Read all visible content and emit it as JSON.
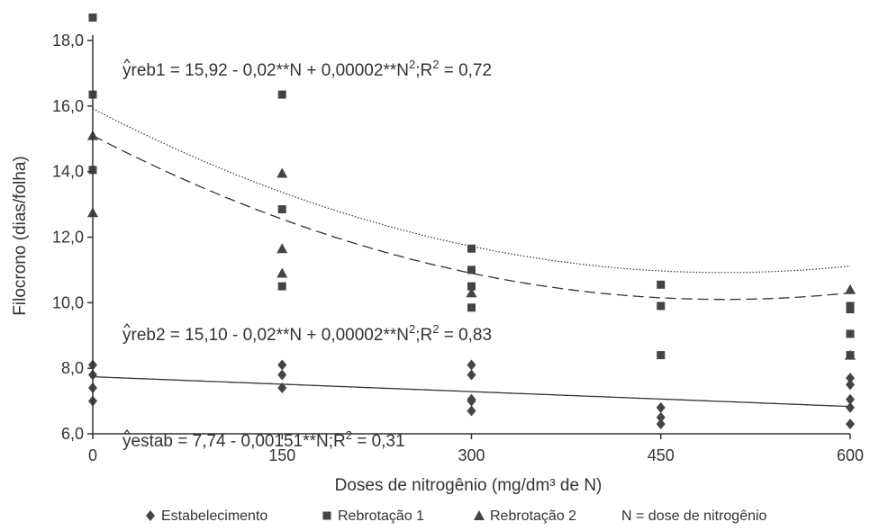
{
  "chart_data": {
    "type": "scatter",
    "xlabel": "Doses de nitrogênio (mg/dm³ de N)",
    "ylabel": "Filocrono (dias/folha)",
    "xlim": [
      0,
      600
    ],
    "ylim": [
      6,
      18
    ],
    "x_ticks": [
      "0",
      "150",
      "300",
      "450",
      "600"
    ],
    "y_ticks": [
      "6,0",
      "8,0",
      "10,0",
      "12,0",
      "14,0",
      "16,0",
      "18,0"
    ],
    "grid": false,
    "legend_position": "bottom",
    "series": [
      {
        "name": "Estabelecimento",
        "marker": "diamond",
        "points": [
          [
            0,
            8.1
          ],
          [
            0,
            7.8
          ],
          [
            0,
            7.4
          ],
          [
            0,
            7.0
          ],
          [
            150,
            8.1
          ],
          [
            150,
            7.8
          ],
          [
            150,
            7.4
          ],
          [
            300,
            8.1
          ],
          [
            300,
            7.8
          ],
          [
            300,
            7.05
          ],
          [
            300,
            7.0
          ],
          [
            300,
            6.7
          ],
          [
            450,
            6.8
          ],
          [
            450,
            6.5
          ],
          [
            450,
            6.3
          ],
          [
            600,
            7.7
          ],
          [
            600,
            7.5
          ],
          [
            600,
            7.05
          ],
          [
            600,
            6.8
          ],
          [
            600,
            6.3
          ]
        ]
      },
      {
        "name": "Rebrotação 1",
        "marker": "square",
        "points": [
          [
            0,
            18.7
          ],
          [
            0,
            16.35
          ],
          [
            0,
            14.05
          ],
          [
            150,
            16.35
          ],
          [
            150,
            12.85
          ],
          [
            150,
            10.5
          ],
          [
            300,
            11.65
          ],
          [
            300,
            11.0
          ],
          [
            300,
            10.5
          ],
          [
            300,
            9.85
          ],
          [
            450,
            10.55
          ],
          [
            450,
            9.9
          ],
          [
            450,
            8.4
          ],
          [
            600,
            9.9
          ],
          [
            600,
            9.8
          ],
          [
            600,
            9.05
          ],
          [
            600,
            8.4
          ]
        ]
      },
      {
        "name": "Rebrotação 2",
        "marker": "triangle",
        "points": [
          [
            0,
            15.1
          ],
          [
            0,
            12.75
          ],
          [
            150,
            13.95
          ],
          [
            150,
            11.65
          ],
          [
            150,
            10.9
          ],
          [
            300,
            10.3
          ],
          [
            600,
            10.4
          ],
          [
            600,
            8.4
          ]
        ]
      }
    ],
    "legend_extra": "N = dose de nitrogênio",
    "fits": [
      {
        "series": "Rebrotação 1",
        "coef": [
          15.92,
          -0.02,
          2e-05
        ],
        "style": "dotted",
        "equation": {
          "yhat": "y",
          "sub": "reb1",
          "text": " = 15,92 - 0,02**N + 0,00002**N",
          "sup": "2",
          "r2_label": ";R",
          "r2_sup": "2",
          "r2_value": " = 0,72"
        }
      },
      {
        "series": "Rebrotação 2",
        "coef": [
          15.1,
          -0.02,
          2e-05
        ],
        "style": "dashed",
        "equation": {
          "yhat": "y",
          "sub": "reb2",
          "text": " = 15,10 - 0,02**N + 0,00002**N",
          "sup": "2",
          "r2_label": ";R",
          "r2_sup": "2",
          "r2_value": " = 0,83"
        }
      },
      {
        "series": "Estabelecimento",
        "coef": [
          7.74,
          -0.00151,
          0
        ],
        "style": "solid",
        "equation": {
          "yhat": "y",
          "sub": "estab",
          "text": " = 7,74 - 0,00151**N",
          "sup": "",
          "r2_label": ";R",
          "r2_sup": "2",
          "r2_value": " = 0,31"
        }
      }
    ]
  }
}
